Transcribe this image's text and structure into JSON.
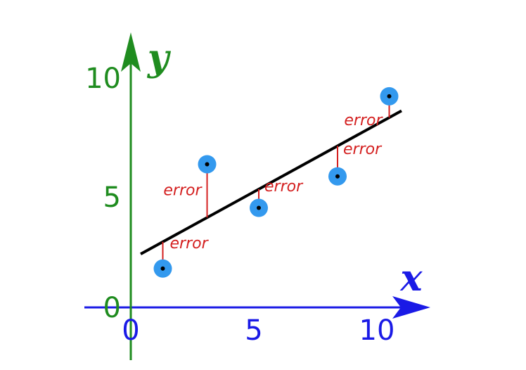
{
  "colors": {
    "x_axis": "#1a1ae6",
    "y_axis": "#1f8c1f",
    "fit_line": "#000000",
    "point": "#3399ee",
    "error": "#d42020"
  },
  "chart_data": {
    "type": "scatter",
    "xlabel": "x",
    "ylabel": "y",
    "xlim": [
      0,
      12
    ],
    "ylim": [
      0,
      11
    ],
    "x_ticks": [
      "0",
      "5",
      "10"
    ],
    "x_tick_values": [
      0,
      5,
      10
    ],
    "y_ticks": [
      "0",
      "5",
      "10"
    ],
    "y_tick_values": [
      0,
      5,
      10
    ],
    "points": [
      {
        "x": 1.3,
        "y": 1.6
      },
      {
        "x": 3.1,
        "y": 5.9
      },
      {
        "x": 5.2,
        "y": 4.1
      },
      {
        "x": 8.4,
        "y": 5.4
      },
      {
        "x": 10.5,
        "y": 8.7
      }
    ],
    "fit_line": {
      "x": [
        0.4,
        11.0
      ],
      "y": [
        2.2,
        8.1
      ]
    },
    "error_label": "error",
    "grid": false,
    "legend": "none"
  }
}
